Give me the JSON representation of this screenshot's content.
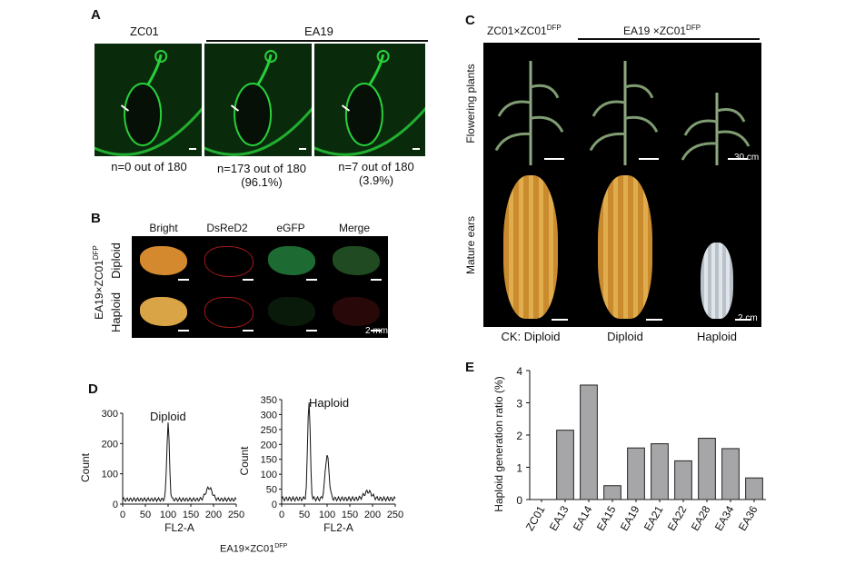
{
  "panelA": {
    "label": "A",
    "header_left": "ZC01",
    "header_right": "EA19",
    "captions": [
      {
        "line1": "n=0 out of 180",
        "line2": ""
      },
      {
        "line1": "n=173 out of 180",
        "line2": "(96.1%)"
      },
      {
        "line1": "n=7 out of 180",
        "line2": "(3.9%)"
      }
    ],
    "glow_color": "#27d13a"
  },
  "panelB": {
    "label": "B",
    "columns": [
      "Bright",
      "DsReD2",
      "eGFP",
      "Merge"
    ],
    "cross_label": "EA19×ZC01",
    "cross_sup": "DFP",
    "rows": [
      "Diploid",
      "Haploid"
    ],
    "scale_text": "2 mm"
  },
  "panelC": {
    "label": "C",
    "header_left": "ZC01×ZC01",
    "header_left_sup": "DFP",
    "header_right": "EA19 ×ZC01",
    "header_right_sup": "DFP",
    "row_labels": [
      "Flowering plants",
      "Mature ears"
    ],
    "plant_scale": "30 cm",
    "ear_scale": "2 cm",
    "bottom_labels": [
      "CK: Diploid",
      "Diploid",
      "Haploid"
    ]
  },
  "panelD": {
    "label": "D",
    "plots": [
      {
        "title": "Diploid",
        "xlabel": "FL2-A",
        "ylabel": "Count",
        "yticks": [
          "0",
          "100",
          "200",
          "300"
        ],
        "xticks": [
          "0",
          "50",
          "100",
          "150",
          "200",
          "250"
        ]
      },
      {
        "title": "Haploid",
        "xlabel": "FL2-A",
        "ylabel": "Count",
        "yticks": [
          "0",
          "50",
          "100",
          "150",
          "200",
          "250",
          "300",
          "350"
        ],
        "xticks": [
          "0",
          "50",
          "100",
          "150",
          "200",
          "250"
        ]
      }
    ],
    "footer": "EA19×ZC01",
    "footer_sup": "DFP"
  },
  "panelE": {
    "label": "E"
  },
  "chart_data": {
    "type": "bar",
    "title": "",
    "xlabel": "",
    "ylabel": "Haploid generation ratio (%)",
    "categories": [
      "ZC01",
      "EA13",
      "EA14",
      "EA15",
      "EA19",
      "EA21",
      "EA22",
      "EA28",
      "EA34",
      "EA36"
    ],
    "values": [
      0,
      2.15,
      3.55,
      0.43,
      1.6,
      1.73,
      1.2,
      1.9,
      1.58,
      0.67
    ],
    "ylim": [
      0,
      4
    ],
    "yticks": [
      "0",
      "1",
      "2",
      "3",
      "4"
    ],
    "grid": false,
    "bar_color": "#a6a6a8"
  }
}
